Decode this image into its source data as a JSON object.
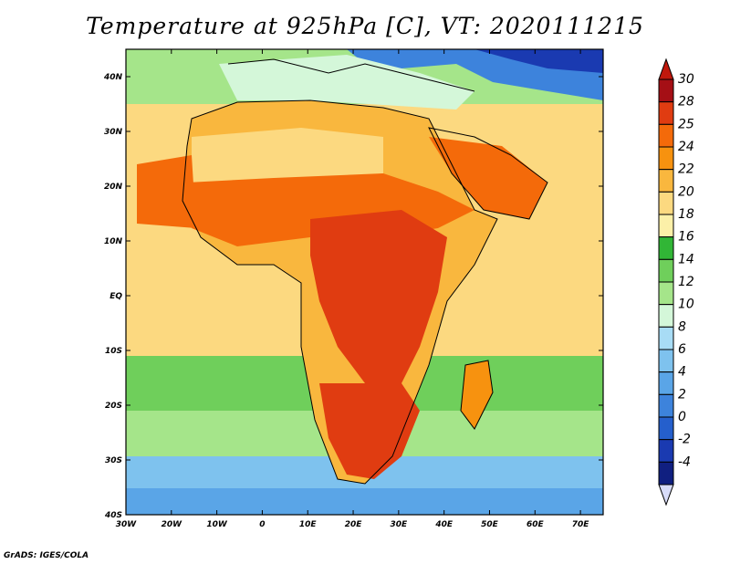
{
  "title": "Temperature at 925hPa [C], VT: 2020111215",
  "credit": "GrADS: IGES/COLA",
  "map": {
    "lon_range": [
      -30,
      75
    ],
    "lat_range": [
      -40,
      45
    ],
    "lon_ticks": [
      {
        "value": -30,
        "label": "30W"
      },
      {
        "value": -20,
        "label": "20W"
      },
      {
        "value": -10,
        "label": "10W"
      },
      {
        "value": 0,
        "label": "0"
      },
      {
        "value": 10,
        "label": "10E"
      },
      {
        "value": 20,
        "label": "20E"
      },
      {
        "value": 30,
        "label": "30E"
      },
      {
        "value": 40,
        "label": "40E"
      },
      {
        "value": 50,
        "label": "50E"
      },
      {
        "value": 60,
        "label": "60E"
      },
      {
        "value": 70,
        "label": "70E"
      }
    ],
    "lat_ticks": [
      {
        "value": 40,
        "label": "40N"
      },
      {
        "value": 30,
        "label": "30N"
      },
      {
        "value": 20,
        "label": "20N"
      },
      {
        "value": 10,
        "label": "10N"
      },
      {
        "value": 0,
        "label": "EQ"
      },
      {
        "value": -10,
        "label": "10S"
      },
      {
        "value": -20,
        "label": "20S"
      },
      {
        "value": -30,
        "label": "30S"
      },
      {
        "value": -40,
        "label": "40S"
      }
    ]
  },
  "colorbar": {
    "levels": [
      {
        "label": "30",
        "color": "#a50f15"
      },
      {
        "label": "28",
        "color": "#e03c11"
      },
      {
        "label": "25",
        "color": "#f46a0a"
      },
      {
        "label": "24",
        "color": "#f7920f"
      },
      {
        "label": "22",
        "color": "#f9b73e"
      },
      {
        "label": "20",
        "color": "#fcd980"
      },
      {
        "label": "18",
        "color": "#fcf0a8"
      },
      {
        "label": "16",
        "color": "#31b636"
      },
      {
        "label": "14",
        "color": "#6fcf5b"
      },
      {
        "label": "12",
        "color": "#a5e58a"
      },
      {
        "label": "10",
        "color": "#d4f7d9"
      },
      {
        "label": "8",
        "color": "#a8dcf5"
      },
      {
        "label": "6",
        "color": "#7ec2ee"
      },
      {
        "label": "4",
        "color": "#5aa5e7"
      },
      {
        "label": "2",
        "color": "#3d83dc"
      },
      {
        "label": "0",
        "color": "#255fcc"
      },
      {
        "label": "-2",
        "color": "#1a3ab1"
      },
      {
        "label": "-4",
        "color": "#101f80"
      }
    ],
    "over_color": "#c0180c",
    "under_color": "#d8dcf9"
  },
  "colors": {
    "ocean_south": "#a5e58a",
    "ocean_tropics": "#fcd980",
    "land_hot": "#e03c11",
    "coastline": "#000000"
  }
}
